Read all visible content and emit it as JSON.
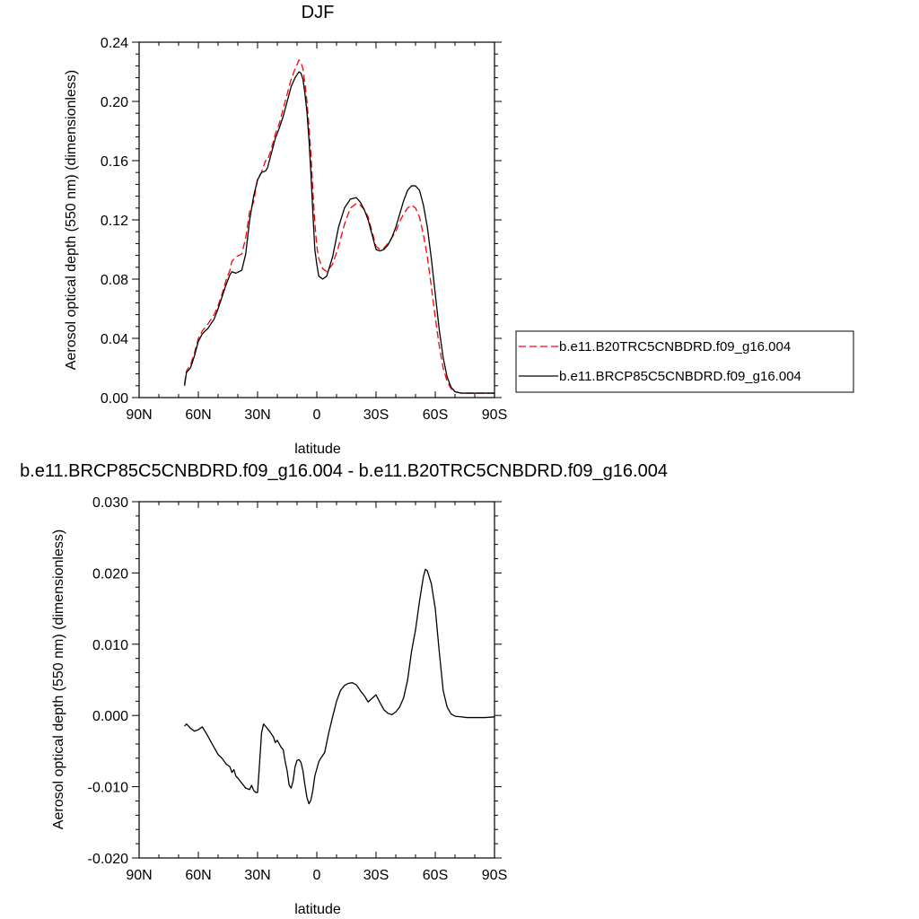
{
  "chart_data": [
    {
      "type": "line",
      "title": "DJF",
      "xlabel": "latitude",
      "ylabel": "Aerosol optical depth (550 nm) (dimensionless)",
      "xlim": [
        90,
        -90
      ],
      "ylim": [
        0.0,
        0.24
      ],
      "x_ticks": [
        90,
        60,
        30,
        0,
        -30,
        -60,
        -90
      ],
      "x_tick_labels": [
        "90N",
        "60N",
        "30N",
        "0",
        "30S",
        "60S",
        "90S"
      ],
      "y_ticks": [
        0.0,
        0.04,
        0.08,
        0.12,
        0.16,
        0.2,
        0.24
      ],
      "y_tick_labels": [
        "0.00",
        "0.04",
        "0.08",
        "0.12",
        "0.16",
        "0.20",
        "0.24"
      ],
      "legend_position": "right",
      "series": [
        {
          "name": "b.e11.B20TRC5CNBDRD.f09_g16.004",
          "color": "#ff0000",
          "dash": "dashed",
          "x": [
            67,
            66,
            64,
            62,
            60,
            58,
            55,
            52,
            50,
            48,
            46,
            44,
            43,
            41,
            38,
            36,
            34,
            32,
            30,
            28,
            26,
            25,
            23,
            21,
            19,
            17,
            15,
            13,
            11,
            10,
            9,
            8,
            7,
            6,
            5,
            4,
            3,
            2,
            1,
            0,
            -1,
            -3,
            -5,
            -8,
            -11,
            -14,
            -17,
            -20,
            -22,
            -24,
            -26,
            -28,
            -30,
            -32,
            -34,
            -36,
            -38,
            -40,
            -42,
            -44,
            -46,
            -48,
            -50,
            -52,
            -54,
            -56,
            -58,
            -60,
            -62,
            -64,
            -66,
            -68,
            -70,
            -73,
            -77,
            -80,
            -84,
            -90
          ],
          "y": [
            0.009,
            0.018,
            0.022,
            0.03,
            0.04,
            0.045,
            0.05,
            0.056,
            0.062,
            0.07,
            0.079,
            0.086,
            0.092,
            0.095,
            0.097,
            0.108,
            0.126,
            0.132,
            0.148,
            0.152,
            0.16,
            0.16,
            0.168,
            0.178,
            0.185,
            0.195,
            0.205,
            0.215,
            0.222,
            0.225,
            0.228,
            0.226,
            0.222,
            0.212,
            0.2,
            0.184,
            0.165,
            0.14,
            0.118,
            0.102,
            0.094,
            0.087,
            0.085,
            0.09,
            0.102,
            0.117,
            0.128,
            0.131,
            0.13,
            0.127,
            0.122,
            0.112,
            0.102,
            0.1,
            0.101,
            0.104,
            0.108,
            0.112,
            0.119,
            0.124,
            0.128,
            0.13,
            0.128,
            0.122,
            0.11,
            0.095,
            0.075,
            0.054,
            0.035,
            0.02,
            0.011,
            0.006,
            0.004,
            0.003,
            0.003,
            0.003,
            0.003,
            0.003
          ]
        },
        {
          "name": "b.e11.BRCP85C5CNBDRD.f09_g16.004",
          "color": "#000000",
          "dash": "solid",
          "x": [
            67,
            66,
            64,
            62,
            60,
            58,
            55,
            52,
            50,
            48,
            46,
            44,
            43,
            41,
            38,
            36,
            34,
            32,
            30,
            28,
            26,
            25,
            23,
            21,
            19,
            17,
            15,
            13,
            11,
            10,
            9,
            8,
            7,
            6,
            5,
            4,
            3,
            2,
            1,
            0,
            -1,
            -3,
            -5,
            -8,
            -11,
            -14,
            -17,
            -20,
            -22,
            -24,
            -26,
            -28,
            -30,
            -32,
            -34,
            -36,
            -38,
            -40,
            -42,
            -44,
            -46,
            -48,
            -50,
            -52,
            -54,
            -56,
            -58,
            -60,
            -62,
            -64,
            -66,
            -68,
            -70,
            -73,
            -77,
            -80,
            -84,
            -90
          ],
          "y": [
            0.008,
            0.017,
            0.02,
            0.028,
            0.038,
            0.043,
            0.047,
            0.053,
            0.06,
            0.068,
            0.076,
            0.083,
            0.085,
            0.084,
            0.086,
            0.097,
            0.12,
            0.136,
            0.147,
            0.152,
            0.153,
            0.155,
            0.165,
            0.175,
            0.182,
            0.19,
            0.2,
            0.21,
            0.216,
            0.218,
            0.22,
            0.219,
            0.215,
            0.205,
            0.193,
            0.175,
            0.152,
            0.125,
            0.1,
            0.09,
            0.082,
            0.08,
            0.082,
            0.095,
            0.115,
            0.128,
            0.134,
            0.135,
            0.132,
            0.127,
            0.12,
            0.11,
            0.1,
            0.099,
            0.1,
            0.103,
            0.108,
            0.115,
            0.124,
            0.133,
            0.14,
            0.143,
            0.143,
            0.14,
            0.13,
            0.115,
            0.094,
            0.07,
            0.046,
            0.027,
            0.014,
            0.007,
            0.004,
            0.003,
            0.003,
            0.003,
            0.003,
            0.003
          ]
        }
      ]
    },
    {
      "type": "line",
      "title": "b.e11.BRCP85C5CNBDRD.f09_g16.004 - b.e11.B20TRC5CNBDRD.f09_g16.004",
      "xlabel": "latitude",
      "ylabel": "Aerosol optical depth (550 nm) (dimensionless)",
      "xlim": [
        90,
        -90
      ],
      "ylim": [
        -0.02,
        0.03
      ],
      "x_ticks": [
        90,
        60,
        30,
        0,
        -30,
        -60,
        -90
      ],
      "x_tick_labels": [
        "90N",
        "60N",
        "30N",
        "0",
        "30S",
        "60S",
        "90S"
      ],
      "y_ticks": [
        -0.02,
        -0.01,
        0.0,
        0.01,
        0.02,
        0.03
      ],
      "y_tick_labels": [
        "-0.020",
        "-0.010",
        "0.000",
        "0.010",
        "0.020",
        "0.030"
      ],
      "series": [
        {
          "color": "#000000",
          "dash": "solid",
          "x": [
            67,
            66,
            64,
            62,
            60,
            58,
            56,
            54,
            52,
            50,
            48,
            46,
            44,
            43,
            42,
            41,
            40,
            38,
            36,
            34,
            33,
            32,
            31,
            30,
            29,
            28,
            27,
            26,
            24,
            22,
            21,
            20,
            18,
            17,
            16,
            15,
            14,
            13,
            12,
            11,
            10,
            9,
            8,
            7,
            6,
            5,
            4,
            3,
            2,
            1,
            0,
            -1,
            -2,
            -4,
            -6,
            -8,
            -10,
            -12,
            -14,
            -16,
            -18,
            -20,
            -22,
            -24,
            -26,
            -28,
            -30,
            -32,
            -34,
            -36,
            -38,
            -40,
            -42,
            -44,
            -46,
            -48,
            -50,
            -52,
            -54,
            -55,
            -56,
            -58,
            -60,
            -62,
            -64,
            -66,
            -68,
            -70,
            -73,
            -76,
            -80,
            -85,
            -90
          ],
          "y": [
            -0.0015,
            -0.0012,
            -0.0018,
            -0.0022,
            -0.002,
            -0.0016,
            -0.0025,
            -0.0035,
            -0.0045,
            -0.0055,
            -0.006,
            -0.0068,
            -0.0072,
            -0.008,
            -0.0076,
            -0.0085,
            -0.0088,
            -0.0095,
            -0.0102,
            -0.0104,
            -0.0098,
            -0.0105,
            -0.0108,
            -0.0108,
            -0.0068,
            -0.0025,
            -0.0012,
            -0.0015,
            -0.0022,
            -0.003,
            -0.0038,
            -0.0035,
            -0.0045,
            -0.0048,
            -0.0065,
            -0.0078,
            -0.0098,
            -0.0102,
            -0.0092,
            -0.0072,
            -0.0063,
            -0.0062,
            -0.0066,
            -0.0078,
            -0.0098,
            -0.0115,
            -0.0124,
            -0.0119,
            -0.0105,
            -0.0085,
            -0.0075,
            -0.0065,
            -0.006,
            -0.0052,
            -0.0025,
            -0.0002,
            0.002,
            0.0035,
            0.0042,
            0.0045,
            0.0046,
            0.0043,
            0.0035,
            0.0028,
            0.0019,
            0.0024,
            0.0029,
            0.0018,
            0.0008,
            0.0003,
            0.0001,
            0.0005,
            0.0012,
            0.0025,
            0.005,
            0.009,
            0.012,
            0.016,
            0.0195,
            0.0205,
            0.0203,
            0.0185,
            0.015,
            0.009,
            0.0035,
            0.0012,
            0.0002,
            -0.0001,
            -0.0002,
            -0.0003,
            -0.0003,
            -0.0003,
            -0.0002
          ]
        }
      ]
    }
  ]
}
